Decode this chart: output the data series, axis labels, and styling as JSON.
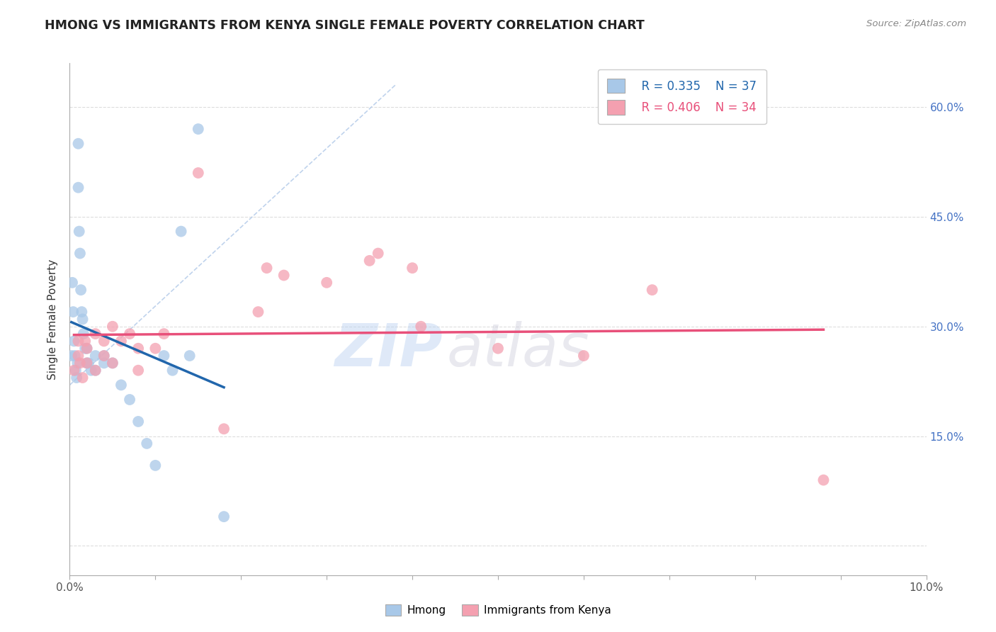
{
  "title": "HMONG VS IMMIGRANTS FROM KENYA SINGLE FEMALE POVERTY CORRELATION CHART",
  "source": "Source: ZipAtlas.com",
  "ylabel": "Single Female Poverty",
  "watermark": "ZIPatlas",
  "legend_r1": "R = 0.335",
  "legend_n1": "N = 37",
  "legend_r2": "R = 0.406",
  "legend_n2": "N = 34",
  "xlim": [
    0.0,
    0.1
  ],
  "ylim": [
    -0.04,
    0.66
  ],
  "hmong_color": "#a8c8e8",
  "kenya_color": "#f4a0b0",
  "hmong_line_color": "#2166ac",
  "kenya_line_color": "#e8507a",
  "ref_line_color": "#b0c8e8",
  "background_color": "#ffffff",
  "grid_color": "#dddddd",
  "hmong_x": [
    0.0002,
    0.0003,
    0.0004,
    0.0005,
    0.0006,
    0.0007,
    0.0008,
    0.0009,
    0.001,
    0.001,
    0.0011,
    0.0012,
    0.0013,
    0.0014,
    0.0015,
    0.0016,
    0.0018,
    0.002,
    0.002,
    0.0022,
    0.0025,
    0.003,
    0.003,
    0.004,
    0.004,
    0.005,
    0.006,
    0.007,
    0.008,
    0.009,
    0.01,
    0.011,
    0.012,
    0.013,
    0.014,
    0.015,
    0.018
  ],
  "hmong_y": [
    0.26,
    0.36,
    0.32,
    0.28,
    0.26,
    0.24,
    0.23,
    0.25,
    0.55,
    0.49,
    0.43,
    0.4,
    0.35,
    0.32,
    0.31,
    0.29,
    0.27,
    0.27,
    0.25,
    0.25,
    0.24,
    0.26,
    0.24,
    0.26,
    0.25,
    0.25,
    0.22,
    0.2,
    0.17,
    0.14,
    0.11,
    0.26,
    0.24,
    0.43,
    0.26,
    0.57,
    0.04
  ],
  "kenya_x": [
    0.0005,
    0.001,
    0.001,
    0.0012,
    0.0015,
    0.0018,
    0.002,
    0.002,
    0.003,
    0.003,
    0.004,
    0.004,
    0.005,
    0.005,
    0.006,
    0.007,
    0.008,
    0.008,
    0.01,
    0.011,
    0.015,
    0.018,
    0.022,
    0.023,
    0.025,
    0.03,
    0.035,
    0.036,
    0.04,
    0.041,
    0.05,
    0.06,
    0.068,
    0.088
  ],
  "kenya_y": [
    0.24,
    0.26,
    0.28,
    0.25,
    0.23,
    0.28,
    0.25,
    0.27,
    0.24,
    0.29,
    0.26,
    0.28,
    0.25,
    0.3,
    0.28,
    0.29,
    0.24,
    0.27,
    0.27,
    0.29,
    0.51,
    0.16,
    0.32,
    0.38,
    0.37,
    0.36,
    0.39,
    0.4,
    0.38,
    0.3,
    0.27,
    0.26,
    0.35,
    0.09
  ]
}
